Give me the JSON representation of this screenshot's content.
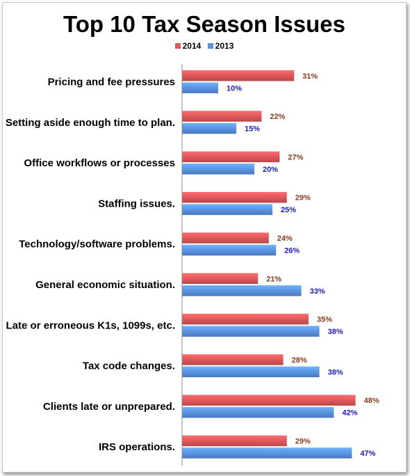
{
  "chart_data": {
    "type": "bar",
    "orientation": "horizontal",
    "title": "Top 10 Tax Season Issues",
    "legend_position": "top",
    "categories": [
      "Pricing and fee pressures",
      "Setting aside enough time to plan.",
      "Office workflows or processes",
      "Staffing issues.",
      "Technology/software problems.",
      "General economic situation.",
      "Late or erroneous K1s, 1099s, etc.",
      "Tax code changes.",
      "Clients late or unprepared.",
      "IRS operations."
    ],
    "series": [
      {
        "name": "2014",
        "values": [
          31,
          22,
          27,
          29,
          24,
          21,
          35,
          28,
          48,
          29
        ],
        "labels": [
          "31%",
          "22%",
          "27%",
          "29%",
          "24%",
          "21%",
          "35%",
          "28%",
          "48%",
          "29%"
        ],
        "color": "#e0585a",
        "label_color": "#8b3a1a"
      },
      {
        "name": "2013",
        "values": [
          10,
          15,
          20,
          25,
          26,
          33,
          38,
          38,
          42,
          47
        ],
        "labels": [
          "10%",
          "15%",
          "20%",
          "25%",
          "26%",
          "33%",
          "38%",
          "38%",
          "42%",
          "47%"
        ],
        "color": "#5b93e3",
        "label_color": "#1a1ad0"
      }
    ],
    "xlim": [
      0,
      50
    ],
    "grid": false
  }
}
